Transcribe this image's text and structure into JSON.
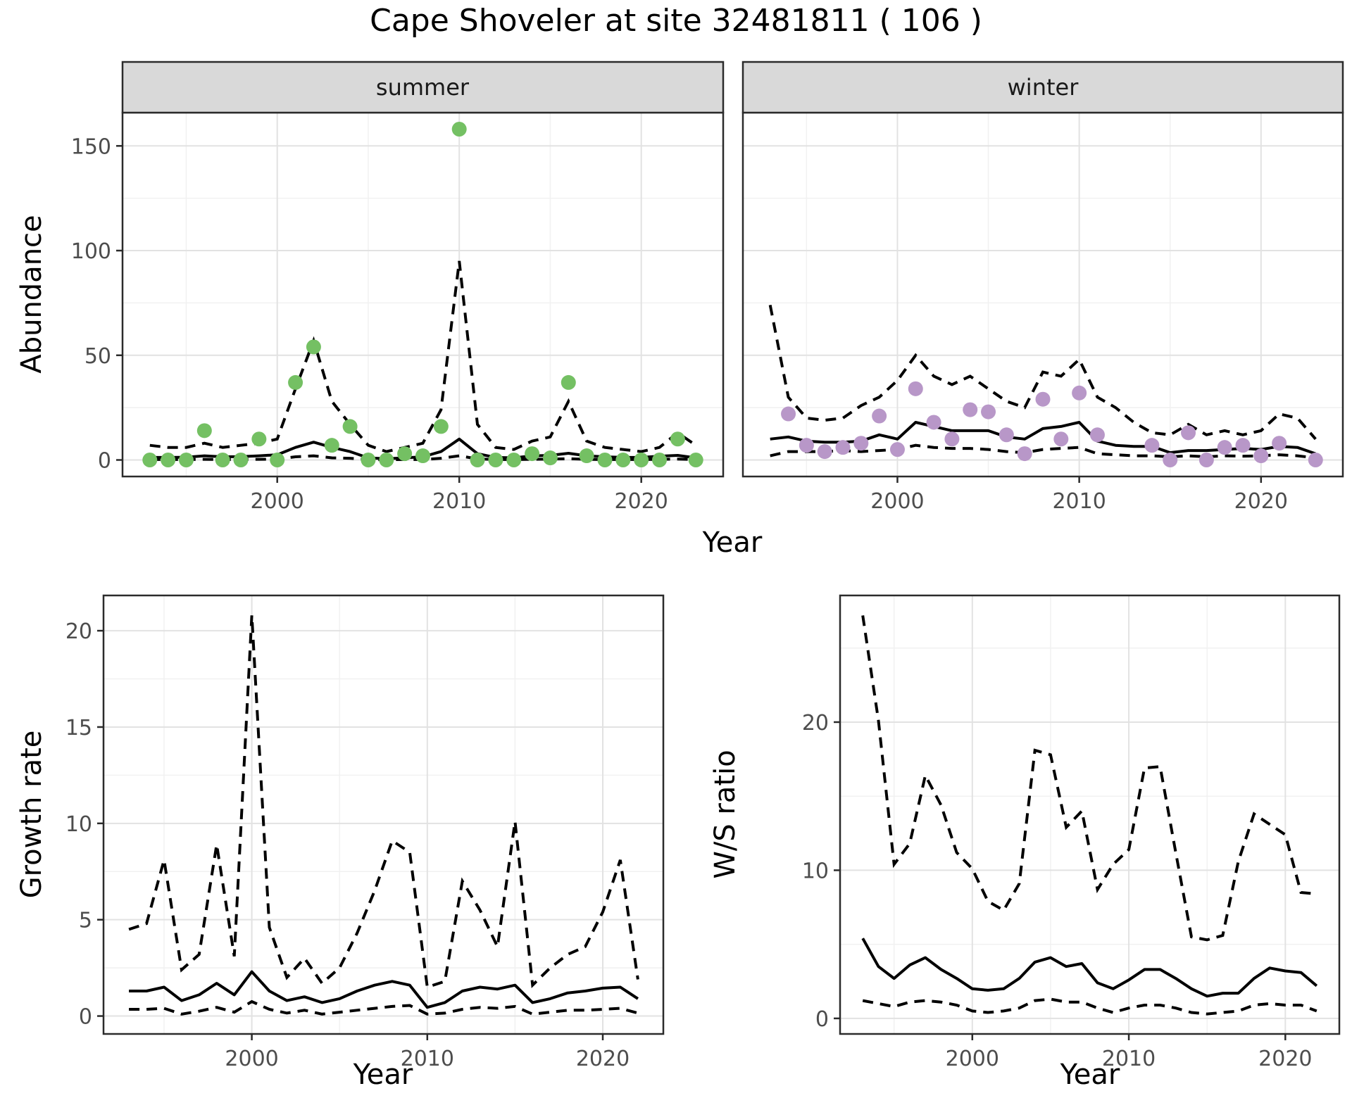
{
  "title": "Cape Shoveler at site 32481811 ( 106 )",
  "axis_labels": {
    "top_y": "Abundance",
    "top_x": "Year",
    "growth_y": "Growth rate",
    "growth_x": "Year",
    "ws_y": "W/S ratio",
    "ws_x": "Year"
  },
  "facets": {
    "summer": "summer",
    "winter": "winter"
  },
  "colors": {
    "summer_point": "#74C063",
    "winter_point": "#B897C8",
    "fit_line": "#000000",
    "ci_line": "#000000",
    "strip_bg": "#D9D9D9",
    "panel_bg": "#FFFFFF",
    "grid_major": "#E2E2E2",
    "grid_minor": "#F1F1F1",
    "panel_border": "#2B2B2B",
    "tick_label": "#4D4D4D",
    "text": "#000000"
  },
  "chart_data": [
    {
      "id": "abundance-summer",
      "type": "line",
      "facet_label": "summer",
      "ylabel": "Abundance",
      "xlabel": "Year",
      "x_ticks": [
        2000,
        2010,
        2020
      ],
      "x_minor": [
        1995,
        2005,
        2015
      ],
      "y_ticks": [
        0,
        50,
        100,
        150
      ],
      "y_minor": [
        25,
        75,
        125
      ],
      "xlim": [
        1991.5,
        2024.5
      ],
      "ylim": [
        -7.9,
        165.9
      ],
      "point_color_key": "summer_point",
      "years": [
        1993,
        1994,
        1995,
        1996,
        1997,
        1998,
        1999,
        2000,
        2001,
        2002,
        2003,
        2004,
        2005,
        2006,
        2007,
        2008,
        2009,
        2010,
        2011,
        2012,
        2013,
        2014,
        2015,
        2016,
        2017,
        2018,
        2019,
        2020,
        2021,
        2022,
        2023
      ],
      "observed": [
        0,
        0,
        0,
        14,
        0,
        0,
        10,
        0,
        37,
        54,
        7,
        16,
        0,
        0,
        3,
        2,
        16,
        158,
        0,
        0,
        0,
        3,
        1,
        37,
        2,
        0,
        0,
        0,
        0,
        10,
        0
      ],
      "fit": [
        1.2,
        1.2,
        1.3,
        2,
        1.5,
        1.6,
        2,
        2.5,
        6,
        8.5,
        6,
        4,
        1,
        0.6,
        1,
        1.5,
        4,
        10,
        3,
        1.2,
        1,
        2,
        2.2,
        3.2,
        2,
        1.5,
        1.2,
        1.2,
        1.8,
        2.2,
        1
      ],
      "ci_upper": [
        7,
        6,
        6,
        8,
        6,
        7,
        8,
        10,
        34,
        57,
        28,
        17,
        7,
        4,
        6,
        8,
        24,
        95,
        17,
        6,
        5,
        9,
        11,
        28,
        9,
        6,
        5,
        4,
        6,
        13,
        7
      ],
      "ci_lower": [
        0.2,
        0.2,
        0.2,
        0.3,
        0.2,
        0.2,
        0.3,
        0.4,
        1.5,
        2,
        1,
        0.8,
        0.2,
        0.1,
        0.2,
        0.2,
        0.8,
        2,
        0.5,
        0.2,
        0.2,
        0.3,
        0.4,
        0.6,
        0.3,
        0.2,
        0.2,
        0.2,
        0.3,
        0.4,
        0.2
      ]
    },
    {
      "id": "abundance-winter",
      "type": "line",
      "facet_label": "winter",
      "ylabel": "Abundance",
      "xlabel": "Year",
      "x_ticks": [
        2000,
        2010,
        2020
      ],
      "x_minor": [
        1995,
        2005,
        2015
      ],
      "y_ticks": [
        0,
        50,
        100,
        150
      ],
      "y_minor": [
        25,
        75,
        125
      ],
      "xlim": [
        1991.5,
        2024.5
      ],
      "ylim": [
        -7.9,
        165.9
      ],
      "point_color_key": "winter_point",
      "years": [
        1993,
        1994,
        1995,
        1996,
        1997,
        1998,
        1999,
        2000,
        2001,
        2002,
        2003,
        2004,
        2005,
        2006,
        2007,
        2008,
        2009,
        2010,
        2011,
        2012,
        2013,
        2014,
        2015,
        2016,
        2017,
        2018,
        2019,
        2020,
        2021,
        2022,
        2023
      ],
      "observed": [
        null,
        22,
        7,
        4,
        6,
        8,
        21,
        5,
        34,
        18,
        10,
        24,
        23,
        12,
        3,
        29,
        10,
        32,
        12,
        null,
        null,
        7,
        0,
        13,
        0,
        6,
        7,
        2,
        8,
        null,
        0
      ],
      "fit": [
        10,
        11,
        9,
        8.5,
        8.5,
        9,
        12,
        10,
        18,
        16,
        14,
        14,
        14,
        11,
        10,
        15,
        16,
        18,
        9,
        7,
        6.5,
        6.5,
        3.5,
        4.5,
        4.5,
        5,
        5.5,
        5,
        6.5,
        6,
        3
      ],
      "ci_upper": [
        74,
        30,
        20,
        19,
        20,
        26,
        30,
        38,
        50,
        40,
        36,
        40,
        34,
        28,
        25,
        42,
        40,
        48,
        30,
        25,
        18,
        13,
        12,
        17,
        12,
        14,
        12,
        14,
        22,
        20,
        10
      ],
      "ci_lower": [
        2,
        4,
        4,
        4,
        4.5,
        4,
        4.5,
        5,
        7,
        6,
        5.5,
        5.5,
        5,
        4,
        3.5,
        5,
        5.5,
        6,
        3,
        2.5,
        2,
        2,
        1.5,
        2,
        1.5,
        2,
        1.8,
        2,
        2.5,
        2,
        1
      ]
    },
    {
      "id": "growth-rate",
      "type": "line",
      "facet_label": null,
      "ylabel": "Growth rate",
      "xlabel": "Year",
      "x_ticks": [
        2000,
        2010,
        2020
      ],
      "x_minor": [
        1995,
        2005,
        2015
      ],
      "y_ticks": [
        0,
        5,
        10,
        15,
        20
      ],
      "y_minor": [
        2.5,
        7.5,
        12.5,
        17.5
      ],
      "xlim": [
        1991.55,
        2023.45
      ],
      "ylim": [
        -0.93,
        21.83
      ],
      "point_color_key": null,
      "years": [
        1993,
        1994,
        1995,
        1996,
        1997,
        1998,
        1999,
        2000,
        2001,
        2002,
        2003,
        2004,
        2005,
        2006,
        2007,
        2008,
        2009,
        2010,
        2011,
        2012,
        2013,
        2014,
        2015,
        2016,
        2017,
        2018,
        2019,
        2020,
        2021,
        2022
      ],
      "observed": null,
      "fit": [
        1.3,
        1.3,
        1.5,
        0.8,
        1.1,
        1.7,
        1.1,
        2.3,
        1.3,
        0.8,
        1.0,
        0.7,
        0.9,
        1.3,
        1.6,
        1.8,
        1.6,
        0.45,
        0.7,
        1.3,
        1.5,
        1.4,
        1.6,
        0.7,
        0.9,
        1.2,
        1.3,
        1.45,
        1.5,
        0.9
      ],
      "ci_upper": [
        4.5,
        4.8,
        8.1,
        2.4,
        3.2,
        8.9,
        3.1,
        20.8,
        4.6,
        2.0,
        3.0,
        1.7,
        2.5,
        4.3,
        6.5,
        9.1,
        8.5,
        1.5,
        1.8,
        7.0,
        5.5,
        3.6,
        10.1,
        1.6,
        2.5,
        3.2,
        3.6,
        5.4,
        8.1,
        1.9
      ],
      "ci_lower": [
        0.35,
        0.35,
        0.4,
        0.1,
        0.25,
        0.45,
        0.2,
        0.75,
        0.35,
        0.15,
        0.3,
        0.1,
        0.2,
        0.3,
        0.4,
        0.5,
        0.55,
        0.1,
        0.15,
        0.35,
        0.45,
        0.4,
        0.5,
        0.1,
        0.2,
        0.3,
        0.3,
        0.35,
        0.4,
        0.15
      ]
    },
    {
      "id": "ws-ratio",
      "type": "line",
      "facet_label": null,
      "ylabel": "W/S ratio",
      "xlabel": "Year",
      "x_ticks": [
        2000,
        2010,
        2020
      ],
      "x_minor": [
        1995,
        2005,
        2015
      ],
      "y_ticks": [
        0,
        10,
        20
      ],
      "y_minor": [
        5,
        15,
        25
      ],
      "xlim": [
        1991.55,
        2023.45
      ],
      "ylim": [
        -1.05,
        28.55
      ],
      "point_color_key": null,
      "years": [
        1993,
        1994,
        1995,
        1996,
        1997,
        1998,
        1999,
        2000,
        2001,
        2002,
        2003,
        2004,
        2005,
        2006,
        2007,
        2008,
        2009,
        2010,
        2011,
        2012,
        2013,
        2014,
        2015,
        2016,
        2017,
        2018,
        2019,
        2020,
        2021,
        2022
      ],
      "observed": null,
      "fit": [
        5.4,
        3.5,
        2.7,
        3.6,
        4.1,
        3.3,
        2.7,
        2.0,
        1.9,
        2.0,
        2.7,
        3.8,
        4.1,
        3.5,
        3.7,
        2.4,
        2.0,
        2.6,
        3.3,
        3.3,
        2.7,
        2.0,
        1.5,
        1.7,
        1.7,
        2.7,
        3.4,
        3.2,
        3.1,
        2.2
      ],
      "ci_upper": [
        27.2,
        20.1,
        10.4,
        11.8,
        16.4,
        14.4,
        11.2,
        10.1,
        7.9,
        7.3,
        9.1,
        18.1,
        17.8,
        12.9,
        14.0,
        8.7,
        10.4,
        11.4,
        16.9,
        17.0,
        11.2,
        5.5,
        5.3,
        5.6,
        10.6,
        13.8,
        13.1,
        12.4,
        8.5,
        8.4
      ],
      "ci_lower": [
        1.2,
        1.0,
        0.8,
        1.1,
        1.2,
        1.1,
        0.9,
        0.5,
        0.4,
        0.5,
        0.7,
        1.2,
        1.3,
        1.1,
        1.1,
        0.7,
        0.4,
        0.7,
        0.9,
        0.9,
        0.7,
        0.4,
        0.3,
        0.4,
        0.5,
        0.9,
        1.0,
        0.9,
        0.9,
        0.5
      ]
    }
  ]
}
